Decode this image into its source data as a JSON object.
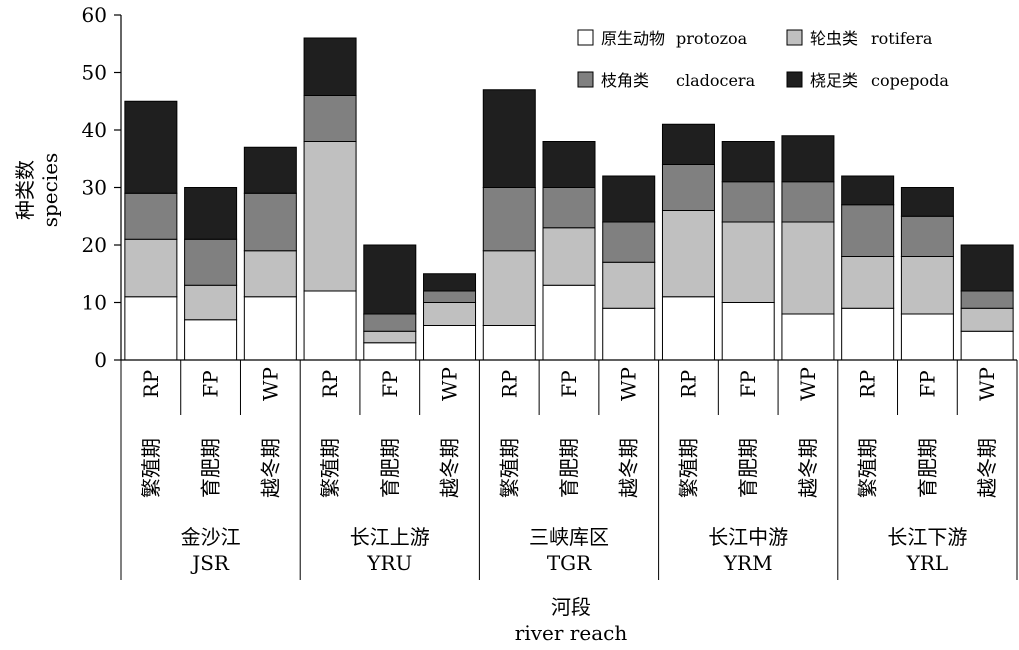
{
  "chart_data": {
    "type": "bar",
    "stacked": true,
    "ylabel": [
      "种类数",
      "species"
    ],
    "xlabel": [
      "河段",
      "river reach"
    ],
    "ylim": [
      0,
      60
    ],
    "yticks": [
      0,
      10,
      20,
      30,
      40,
      50,
      60
    ],
    "legend_position": "top-right",
    "groups": [
      {
        "zh": "金沙江",
        "en": "JSR"
      },
      {
        "zh": "长江上游",
        "en": "YRU"
      },
      {
        "zh": "三峡库区",
        "en": "TGR"
      },
      {
        "zh": "长江中游",
        "en": "YRM"
      },
      {
        "zh": "长江下游",
        "en": "YRL"
      }
    ],
    "periods": [
      {
        "zh": "繁殖期",
        "en": "RP"
      },
      {
        "zh": "育肥期",
        "en": "FP"
      },
      {
        "zh": "越冬期",
        "en": "WP"
      }
    ],
    "series": [
      {
        "name_zh": "原生动物",
        "name_en": "protozoa",
        "color": "#ffffff",
        "values": [
          11,
          7,
          11,
          12,
          3,
          6,
          6,
          13,
          9,
          11,
          10,
          8,
          9,
          8,
          5
        ]
      },
      {
        "name_zh": "轮虫类",
        "name_en": "rotifera",
        "color": "#c0c0c0",
        "values": [
          10,
          6,
          8,
          26,
          2,
          4,
          13,
          10,
          8,
          15,
          14,
          16,
          9,
          10,
          4
        ]
      },
      {
        "name_zh": "枝角类",
        "name_en": "cladocera",
        "color": "#808080",
        "values": [
          8,
          8,
          10,
          8,
          3,
          2,
          11,
          7,
          7,
          8,
          7,
          7,
          9,
          7,
          3
        ]
      },
      {
        "name_zh": "桡足类",
        "name_en": "copepoda",
        "color": "#1f1f1f",
        "values": [
          16,
          9,
          8,
          10,
          12,
          3,
          17,
          8,
          8,
          7,
          7,
          8,
          5,
          5,
          8
        ]
      }
    ]
  }
}
